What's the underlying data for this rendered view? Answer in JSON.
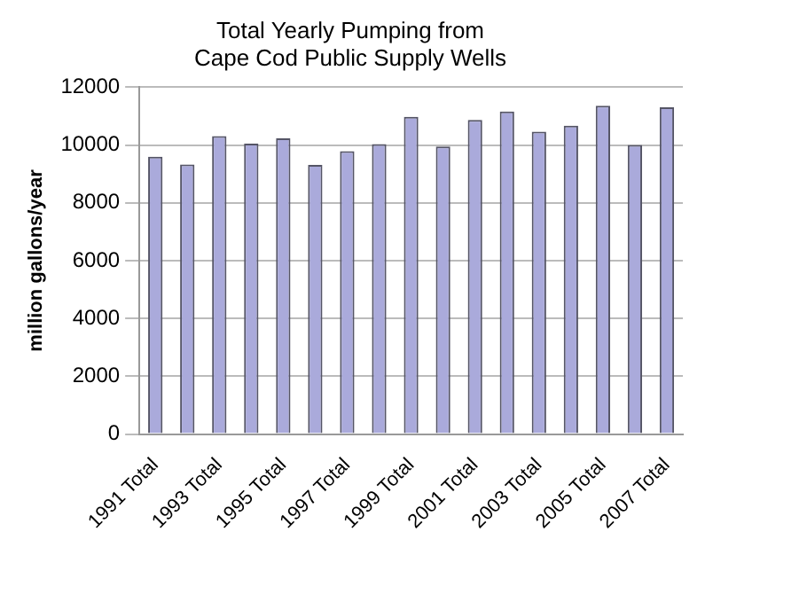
{
  "chart_data": {
    "type": "bar",
    "title": "Total Yearly Pumping from\nCape Cod Public Supply Wells",
    "ylabel": "million gallons/year",
    "categories": [
      "1991 Total",
      null,
      "1993 Total",
      null,
      "1995 Total",
      null,
      "1997 Total",
      null,
      "1999 Total",
      null,
      "2001 Total",
      null,
      "2003 Total",
      null,
      "2005 Total",
      null,
      "2007 Total"
    ],
    "values": [
      9600,
      9330,
      10310,
      10050,
      10230,
      9310,
      9790,
      10030,
      10980,
      9950,
      10870,
      11160,
      10460,
      10670,
      11360,
      10000,
      11310
    ],
    "color": "#aaaadb",
    "ylim": [
      0,
      12000
    ],
    "yticks": [
      0,
      2000,
      4000,
      6000,
      8000,
      10000,
      12000
    ],
    "grid": "y",
    "legend": false
  }
}
